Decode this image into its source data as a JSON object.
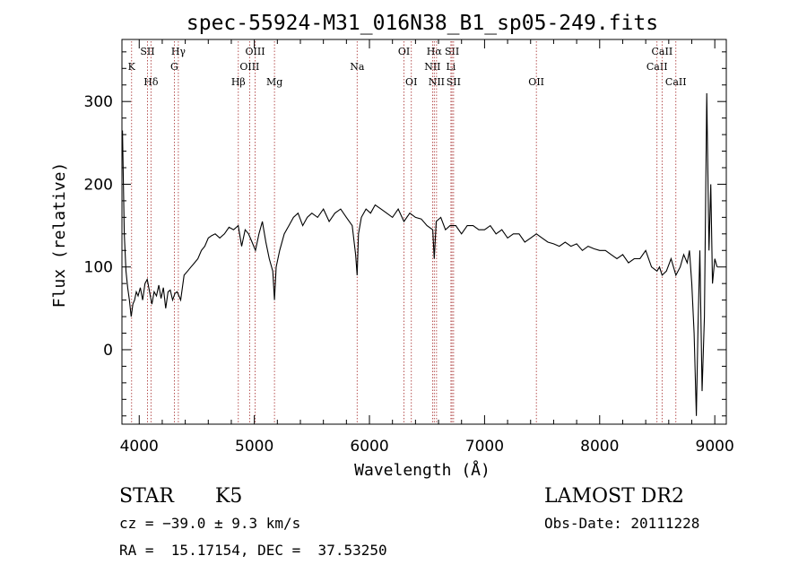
{
  "chart_data": {
    "type": "line",
    "title": "spec-55924-M31_016N38_B1_sp05-249.fits",
    "xlabel": "Wavelength (Å)",
    "ylabel": "Flux (relative)",
    "xlim": [
      3850,
      9100
    ],
    "ylim": [
      -90,
      375
    ],
    "x_ticks": [
      4000,
      5000,
      6000,
      7000,
      8000,
      9000
    ],
    "y_ticks": [
      0,
      100,
      200,
      300
    ],
    "grid": false,
    "line_color": "#000000",
    "marker_color": "#a52a2a",
    "spectral_lines": [
      {
        "label": "K",
        "wavelength": 3934,
        "row": 2
      },
      {
        "label": "SII",
        "wavelength": 4072,
        "row": 1
      },
      {
        "label": "Hδ",
        "wavelength": 4102,
        "row": 3
      },
      {
        "label": "Hγ",
        "wavelength": 4340,
        "row": 1
      },
      {
        "label": "G",
        "wavelength": 4305,
        "row": 2
      },
      {
        "label": "Hβ",
        "wavelength": 4861,
        "row": 3
      },
      {
        "label": "OIII",
        "wavelength": 4959,
        "row": 2
      },
      {
        "label": "OIII",
        "wavelength": 5007,
        "row": 1
      },
      {
        "label": "Mg",
        "wavelength": 5175,
        "row": 3
      },
      {
        "label": "Na",
        "wavelength": 5893,
        "row": 2
      },
      {
        "label": "OI",
        "wavelength": 6300,
        "row": 1
      },
      {
        "label": "OI",
        "wavelength": 6364,
        "row": 3
      },
      {
        "label": "NII",
        "wavelength": 6548,
        "row": 2
      },
      {
        "label": "Hα",
        "wavelength": 6563,
        "row": 1
      },
      {
        "label": "NII",
        "wavelength": 6583,
        "row": 3
      },
      {
        "label": "Li",
        "wavelength": 6708,
        "row": 2
      },
      {
        "label": "SII",
        "wavelength": 6717,
        "row": 1
      },
      {
        "label": "SII",
        "wavelength": 6731,
        "row": 3
      },
      {
        "label": "OII",
        "wavelength": 7450,
        "row": 3
      },
      {
        "label": "CaII",
        "wavelength": 8498,
        "row": 2
      },
      {
        "label": "CaII",
        "wavelength": 8542,
        "row": 1
      },
      {
        "label": "CaII",
        "wavelength": 8662,
        "row": 3
      }
    ],
    "series": [
      {
        "name": "flux",
        "x": [
          3855,
          3870,
          3885,
          3900,
          3915,
          3930,
          3945,
          3960,
          3975,
          3990,
          4010,
          4030,
          4050,
          4070,
          4090,
          4110,
          4130,
          4150,
          4170,
          4190,
          4210,
          4230,
          4250,
          4270,
          4290,
          4310,
          4330,
          4360,
          4390,
          4420,
          4450,
          4480,
          4510,
          4540,
          4570,
          4600,
          4630,
          4660,
          4700,
          4740,
          4780,
          4820,
          4860,
          4890,
          4920,
          4950,
          4980,
          5010,
          5040,
          5070,
          5100,
          5130,
          5160,
          5175,
          5190,
          5220,
          5260,
          5300,
          5340,
          5380,
          5420,
          5460,
          5500,
          5550,
          5600,
          5650,
          5700,
          5750,
          5800,
          5850,
          5880,
          5893,
          5905,
          5930,
          5970,
          6010,
          6050,
          6100,
          6150,
          6200,
          6250,
          6300,
          6350,
          6400,
          6450,
          6500,
          6550,
          6563,
          6580,
          6620,
          6660,
          6700,
          6750,
          6800,
          6850,
          6900,
          6950,
          7000,
          7050,
          7100,
          7150,
          7200,
          7250,
          7300,
          7350,
          7400,
          7450,
          7500,
          7550,
          7600,
          7650,
          7700,
          7750,
          7800,
          7850,
          7900,
          7950,
          8000,
          8050,
          8100,
          8150,
          8200,
          8250,
          8300,
          8350,
          8400,
          8450,
          8498,
          8520,
          8542,
          8580,
          8620,
          8662,
          8700,
          8730,
          8760,
          8780,
          8800,
          8820,
          8840,
          8855,
          8870,
          8890,
          8910,
          8930,
          8950,
          8965,
          8980,
          9000,
          9020
        ],
        "y": [
          265,
          140,
          95,
          75,
          60,
          40,
          55,
          60,
          70,
          65,
          75,
          60,
          80,
          85,
          70,
          55,
          70,
          65,
          78,
          62,
          75,
          50,
          70,
          72,
          60,
          68,
          70,
          60,
          90,
          95,
          100,
          105,
          110,
          120,
          125,
          135,
          138,
          140,
          135,
          140,
          148,
          145,
          150,
          125,
          145,
          140,
          130,
          120,
          140,
          155,
          130,
          110,
          95,
          60,
          100,
          120,
          140,
          150,
          160,
          165,
          150,
          160,
          165,
          160,
          170,
          155,
          165,
          170,
          160,
          150,
          115,
          90,
          140,
          160,
          170,
          165,
          175,
          170,
          165,
          160,
          170,
          155,
          165,
          160,
          158,
          150,
          145,
          110,
          155,
          160,
          145,
          150,
          150,
          140,
          150,
          150,
          145,
          145,
          150,
          140,
          145,
          135,
          140,
          140,
          130,
          135,
          140,
          135,
          130,
          128,
          125,
          130,
          125,
          128,
          120,
          125,
          122,
          120,
          120,
          115,
          110,
          115,
          105,
          110,
          110,
          120,
          100,
          95,
          100,
          90,
          95,
          110,
          90,
          100,
          115,
          105,
          120,
          80,
          20,
          -80,
          30,
          120,
          -50,
          40,
          310,
          120,
          200,
          80,
          110,
          100
        ]
      }
    ]
  },
  "footer": {
    "object_class": "STAR",
    "subclass": "K5",
    "survey": "LAMOST DR2",
    "cz": "cz = −39.0 ± 9.3 km/s",
    "obs_date": "Obs-Date: 20111228",
    "coords": "RA =  15.17154, DEC =  37.53250"
  }
}
